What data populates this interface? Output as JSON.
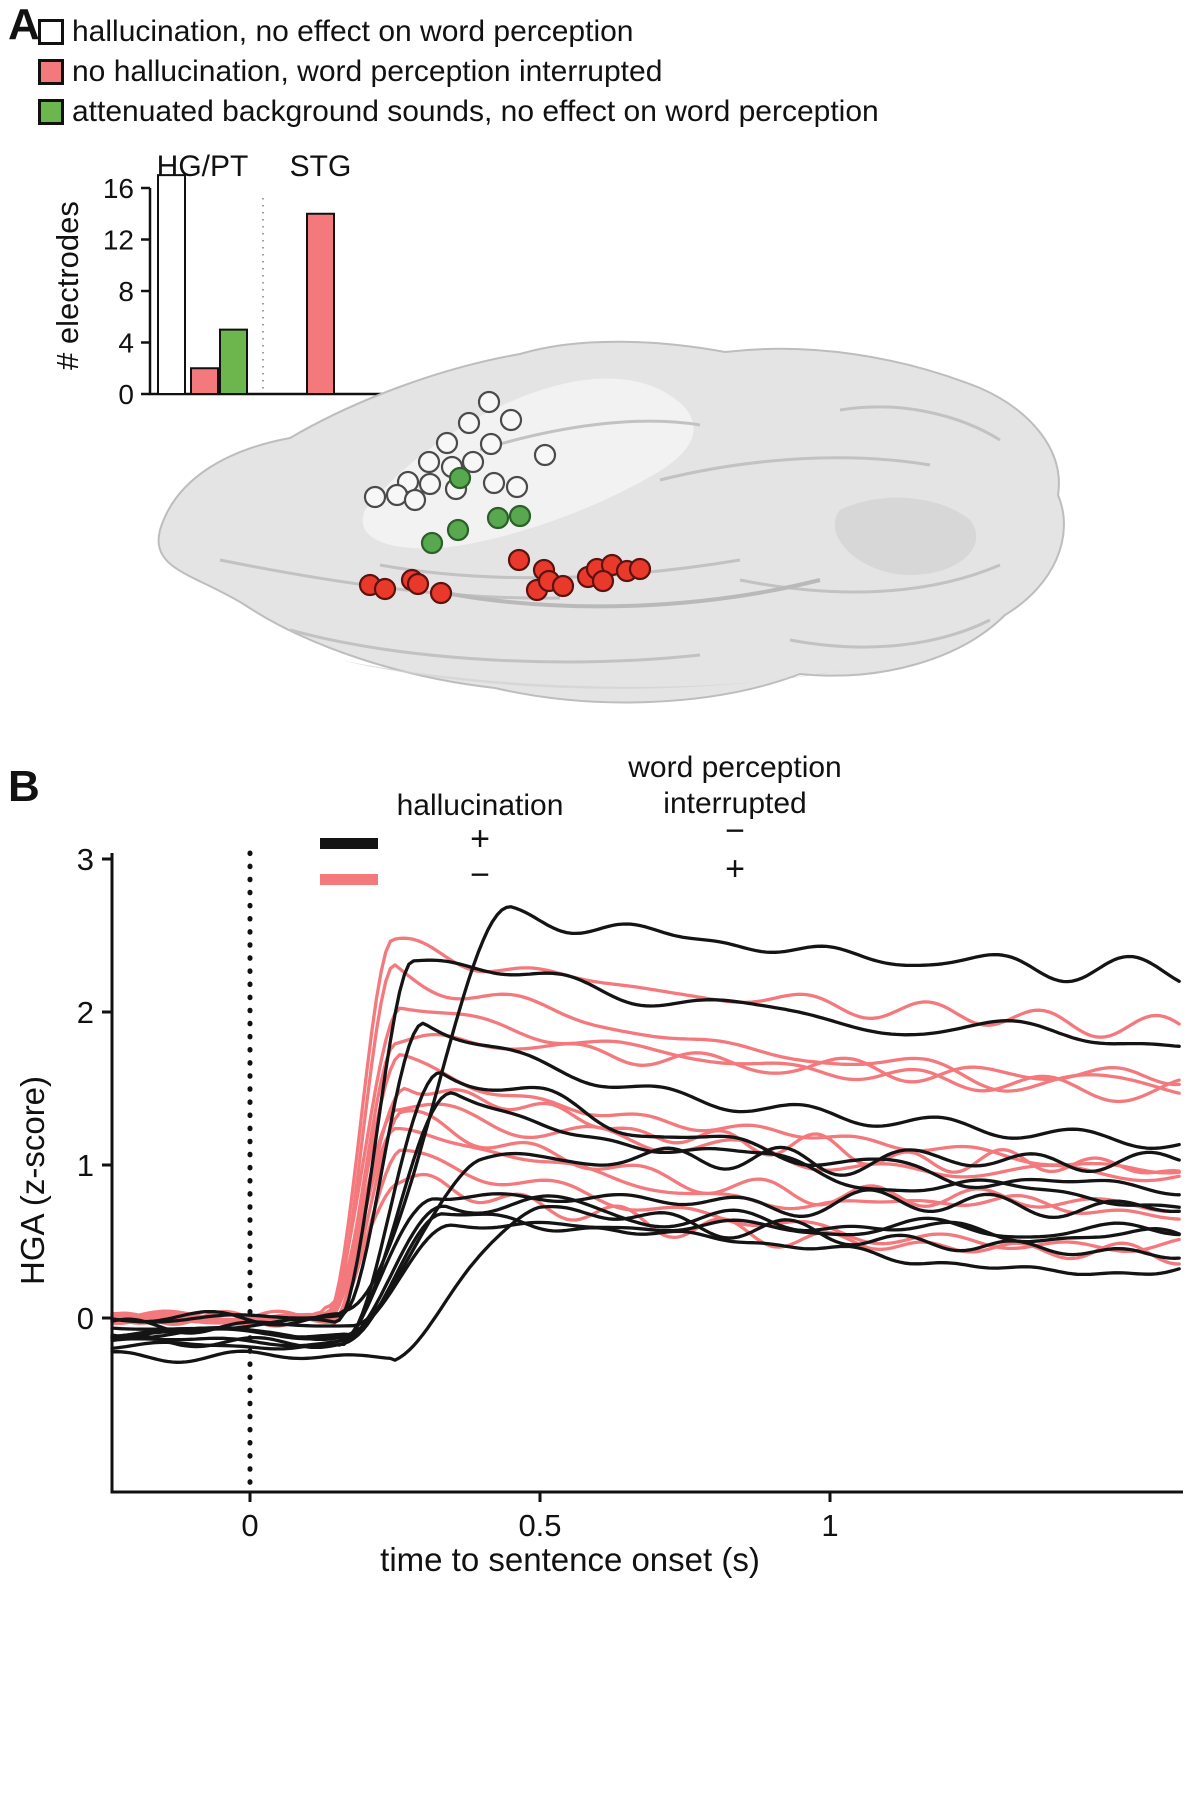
{
  "colors": {
    "pink": "#f4797d",
    "green": "#6db54d",
    "red": "#e8392b",
    "black": "#141414",
    "white": "#ffffff",
    "brain_gray": "#e4e4e4"
  },
  "panel_a": {
    "label": "A",
    "legend": [
      {
        "swatch": "white",
        "label": "hallucination, no effect on word perception"
      },
      {
        "swatch": "pink",
        "label": "no hallucination, word perception interrupted"
      },
      {
        "swatch": "green",
        "label": "attenuated background sounds, no effect on word perception"
      }
    ]
  },
  "panel_b": {
    "label": "B",
    "legend": {
      "col1_header": "hallucination",
      "col2_header": "word perception interrupted",
      "rows": [
        {
          "swatch": "black",
          "hallucination": "+",
          "interrupted": "−"
        },
        {
          "swatch": "pink",
          "hallucination": "−",
          "interrupted": "+"
        }
      ]
    }
  },
  "chart_data": [
    {
      "type": "bar",
      "title": "",
      "ylabel": "# electrodes",
      "y_ticks": [
        0,
        4,
        8,
        12,
        16
      ],
      "ylim": [
        0,
        17
      ],
      "groups": [
        {
          "label": "HG/PT",
          "bars": [
            {
              "category": "hallucination, no effect on word perception",
              "color": "white",
              "value": 17
            },
            {
              "category": "no hallucination, word perception interrupted",
              "color": "pink",
              "value": 2
            },
            {
              "category": "attenuated background sounds, no effect on word perception",
              "color": "green",
              "value": 5
            }
          ]
        },
        {
          "label": "STG",
          "bars": [
            {
              "category": "no hallucination, word perception interrupted",
              "color": "pink",
              "value": 14
            }
          ]
        }
      ]
    },
    {
      "type": "scatter",
      "name": "electrode-locations-on-brain",
      "groups": {
        "white": [
          [
            349,
            72
          ],
          [
            371,
            90
          ],
          [
            329,
            93
          ],
          [
            307,
            113
          ],
          [
            351,
            114
          ],
          [
            405,
            125
          ],
          [
            289,
            132
          ],
          [
            312,
            137
          ],
          [
            268,
            152
          ],
          [
            354,
            153
          ],
          [
            377,
            157
          ],
          [
            235,
            167
          ],
          [
            257,
            165
          ],
          [
            290,
            154
          ],
          [
            333,
            132
          ],
          [
            275,
            170
          ],
          [
            316,
            159
          ]
        ],
        "green": [
          [
            320,
            148
          ],
          [
            358,
            188
          ],
          [
            380,
            186
          ],
          [
            318,
            200
          ],
          [
            292,
            213
          ]
        ],
        "red": [
          [
            230,
            255
          ],
          [
            245,
            259
          ],
          [
            272,
            250
          ],
          [
            278,
            254
          ],
          [
            301,
            263
          ],
          [
            379,
            230
          ],
          [
            397,
            260
          ],
          [
            404,
            240
          ],
          [
            409,
            251
          ],
          [
            423,
            256
          ],
          [
            448,
            247
          ],
          [
            457,
            239
          ],
          [
            472,
            235
          ],
          [
            487,
            241
          ],
          [
            463,
            251
          ],
          [
            500,
            239
          ]
        ]
      }
    },
    {
      "type": "line",
      "title": "",
      "xlabel": "time to sentence onset (s)",
      "ylabel": "HGA (z-score)",
      "x_ticks": [
        0,
        0.5,
        1
      ],
      "y_ticks": [
        0,
        1,
        2,
        3
      ],
      "x_range": [
        -0.238,
        1.609
      ],
      "y_range": [
        -1.14,
        3.04
      ],
      "onset_marker_x": 0,
      "legend_position": "top",
      "series": [
        {
          "color": "pink",
          "onset": 0.13,
          "peak_time": 0.245,
          "peak": 2.42,
          "sustained": 1.75,
          "tau": 0.9,
          "baseline": 0,
          "seed": 31
        },
        {
          "color": "pink",
          "onset": 0.14,
          "peak_time": 0.25,
          "peak": 2.32,
          "sustained": 1.42,
          "tau": 0.6,
          "baseline": 0,
          "seed": 32
        },
        {
          "color": "pink",
          "onset": 0.13,
          "peak_time": 0.26,
          "peak": 2.05,
          "sustained": 1.38,
          "tau": 0.7,
          "baseline": 0,
          "seed": 33
        },
        {
          "color": "pink",
          "onset": 0.14,
          "peak_time": 0.25,
          "peak": 1.85,
          "sustained": 1.5,
          "tau": 0.8,
          "baseline": 0,
          "seed": 34
        },
        {
          "color": "pink",
          "onset": 0.13,
          "peak_time": 0.26,
          "peak": 1.75,
          "sustained": 0.95,
          "tau": 0.5,
          "baseline": 0,
          "seed": 35
        },
        {
          "color": "pink",
          "onset": 0.14,
          "peak_time": 0.27,
          "peak": 1.55,
          "sustained": 0.9,
          "tau": 0.6,
          "baseline": 0,
          "seed": 36
        },
        {
          "color": "pink",
          "onset": 0.13,
          "peak_time": 0.25,
          "peak": 1.38,
          "sustained": 0.85,
          "tau": 0.7,
          "baseline": 0,
          "seed": 37
        },
        {
          "color": "pink",
          "onset": 0.14,
          "peak_time": 0.26,
          "peak": 1.3,
          "sustained": 0.68,
          "tau": 0.5,
          "baseline": 0,
          "seed": 38
        },
        {
          "color": "pink",
          "onset": 0.13,
          "peak_time": 0.25,
          "peak": 1.2,
          "sustained": 0.6,
          "tau": 0.6,
          "baseline": 0,
          "seed": 39
        },
        {
          "color": "pink",
          "onset": 0.14,
          "peak_time": 0.26,
          "peak": 1.1,
          "sustained": 0.42,
          "tau": 0.5,
          "baseline": 0,
          "seed": 40
        },
        {
          "color": "pink",
          "onset": 0.13,
          "peak_time": 0.25,
          "peak": 0.92,
          "sustained": 0.35,
          "tau": 0.6,
          "baseline": 0,
          "seed": 41
        },
        {
          "color": "black",
          "onset": 0.16,
          "peak_time": 0.45,
          "peak": 2.62,
          "sustained": 2.0,
          "tau": 1.2,
          "baseline": 0,
          "seed": 11
        },
        {
          "color": "black",
          "onset": 0.15,
          "peak_time": 0.28,
          "peak": 2.38,
          "sustained": 1.62,
          "tau": 0.9,
          "baseline": -0.05,
          "seed": 12
        },
        {
          "color": "black",
          "onset": 0.16,
          "peak_time": 0.3,
          "peak": 1.92,
          "sustained": 1.05,
          "tau": 0.6,
          "baseline": 0,
          "seed": 13
        },
        {
          "color": "black",
          "onset": 0.17,
          "peak_time": 0.33,
          "peak": 1.66,
          "sustained": 0.72,
          "tau": 0.6,
          "baseline": -0.1,
          "seed": 14
        },
        {
          "color": "black",
          "onset": 0.16,
          "peak_time": 0.35,
          "peak": 1.45,
          "sustained": 0.62,
          "tau": 0.7,
          "baseline": -0.1,
          "seed": 15
        },
        {
          "color": "black",
          "onset": 0.18,
          "peak_time": 0.4,
          "peak": 1.05,
          "sustained": 1.0,
          "tau": 1.5,
          "baseline": -0.05,
          "seed": 16
        },
        {
          "color": "black",
          "onset": 0.16,
          "peak_time": 0.32,
          "peak": 0.82,
          "sustained": 0.68,
          "tau": 1.0,
          "baseline": -0.15,
          "seed": 17
        },
        {
          "color": "black",
          "onset": 0.17,
          "peak_time": 0.34,
          "peak": 0.8,
          "sustained": 0.45,
          "tau": 0.8,
          "baseline": -0.15,
          "seed": 18
        },
        {
          "color": "black",
          "onset": 0.16,
          "peak_time": 0.33,
          "peak": 0.78,
          "sustained": 0.25,
          "tau": 0.6,
          "baseline": -0.2,
          "seed": 19
        },
        {
          "color": "black",
          "onset": 0.25,
          "peak_time": 0.5,
          "peak": 0.75,
          "sustained": 0.3,
          "tau": 0.8,
          "baseline": -0.25,
          "seed": 20
        },
        {
          "color": "black",
          "onset": 0.17,
          "peak_time": 0.35,
          "peak": 0.62,
          "sustained": 0.55,
          "tau": 1.0,
          "baseline": -0.1,
          "seed": 21
        }
      ]
    }
  ]
}
